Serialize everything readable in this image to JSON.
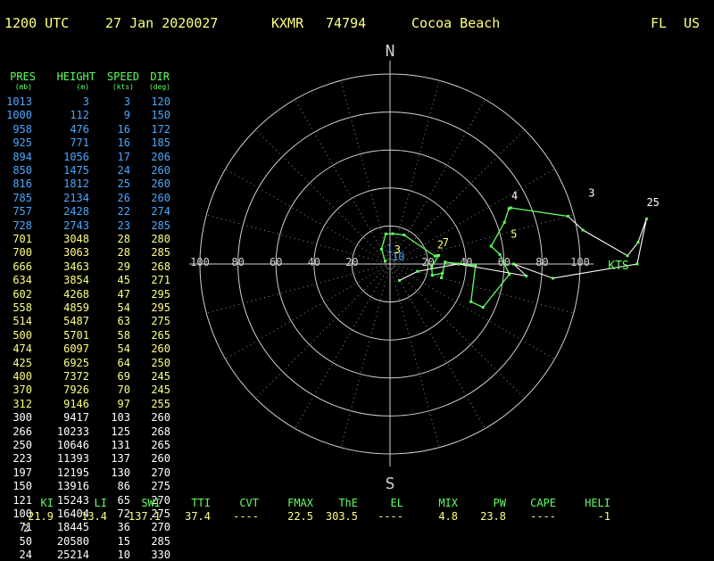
{
  "header": {
    "time": "1200 UTC",
    "date": "27 Jan 2020027",
    "station_id": "KXMR",
    "station_num": "74794",
    "place": "Cocoa Beach",
    "state": "FL",
    "country": "US"
  },
  "table": {
    "columns": [
      {
        "name": "PRES",
        "unit": "(mb)"
      },
      {
        "name": "HEIGHT",
        "unit": "(m)"
      },
      {
        "name": "SPEED",
        "unit": "(kts)"
      },
      {
        "name": "DIR",
        "unit": "(deg)"
      }
    ],
    "rows": [
      {
        "pres": "1013",
        "height": "3",
        "speed": "3",
        "dir": "120",
        "color": "#4aa8ff"
      },
      {
        "pres": "1000",
        "height": "112",
        "speed": "9",
        "dir": "150",
        "color": "#4aa8ff"
      },
      {
        "pres": "958",
        "height": "476",
        "speed": "16",
        "dir": "172",
        "color": "#4aa8ff"
      },
      {
        "pres": "925",
        "height": "771",
        "speed": "16",
        "dir": "185",
        "color": "#4aa8ff"
      },
      {
        "pres": "894",
        "height": "1056",
        "speed": "17",
        "dir": "206",
        "color": "#4aa8ff"
      },
      {
        "pres": "850",
        "height": "1475",
        "speed": "24",
        "dir": "260",
        "color": "#4aa8ff"
      },
      {
        "pres": "816",
        "height": "1812",
        "speed": "25",
        "dir": "260",
        "color": "#4aa8ff"
      },
      {
        "pres": "785",
        "height": "2134",
        "speed": "26",
        "dir": "260",
        "color": "#4aa8ff"
      },
      {
        "pres": "757",
        "height": "2428",
        "speed": "22",
        "dir": "274",
        "color": "#4aa8ff"
      },
      {
        "pres": "728",
        "height": "2743",
        "speed": "23",
        "dir": "285",
        "color": "#4aa8ff"
      },
      {
        "pres": "701",
        "height": "3048",
        "speed": "28",
        "dir": "280",
        "color": "#ffff80"
      },
      {
        "pres": "700",
        "height": "3063",
        "speed": "28",
        "dir": "285",
        "color": "#ffff80"
      },
      {
        "pres": "666",
        "height": "3463",
        "speed": "29",
        "dir": "268",
        "color": "#ffff80"
      },
      {
        "pres": "634",
        "height": "3854",
        "speed": "45",
        "dir": "271",
        "color": "#ffff80"
      },
      {
        "pres": "602",
        "height": "4268",
        "speed": "47",
        "dir": "295",
        "color": "#ffff80"
      },
      {
        "pres": "558",
        "height": "4859",
        "speed": "54",
        "dir": "295",
        "color": "#ffff80"
      },
      {
        "pres": "514",
        "height": "5487",
        "speed": "63",
        "dir": "275",
        "color": "#ffff80"
      },
      {
        "pres": "500",
        "height": "5701",
        "speed": "58",
        "dir": "265",
        "color": "#ffff80"
      },
      {
        "pres": "474",
        "height": "6097",
        "speed": "54",
        "dir": "260",
        "color": "#ffff80"
      },
      {
        "pres": "425",
        "height": "6925",
        "speed": "64",
        "dir": "250",
        "color": "#ffff80"
      },
      {
        "pres": "400",
        "height": "7372",
        "speed": "69",
        "dir": "245",
        "color": "#ffff80"
      },
      {
        "pres": "370",
        "height": "7926",
        "speed": "70",
        "dir": "245",
        "color": "#ffff80"
      },
      {
        "pres": "312",
        "height": "9146",
        "speed": "97",
        "dir": "255",
        "color": "#ffff80"
      },
      {
        "pres": "300",
        "height": "9417",
        "speed": "103",
        "dir": "260",
        "color": "#ffffff"
      },
      {
        "pres": "266",
        "height": "10233",
        "speed": "125",
        "dir": "268",
        "color": "#ffffff"
      },
      {
        "pres": "250",
        "height": "10646",
        "speed": "131",
        "dir": "265",
        "color": "#ffffff"
      },
      {
        "pres": "223",
        "height": "11393",
        "speed": "137",
        "dir": "260",
        "color": "#ffffff"
      },
      {
        "pres": "197",
        "height": "12195",
        "speed": "130",
        "dir": "270",
        "color": "#ffffff"
      },
      {
        "pres": "150",
        "height": "13916",
        "speed": "86",
        "dir": "275",
        "color": "#ffffff"
      },
      {
        "pres": "121",
        "height": "15243",
        "speed": "65",
        "dir": "270",
        "color": "#ffffff"
      },
      {
        "pres": "100",
        "height": "16404",
        "speed": "72",
        "dir": "275",
        "color": "#ffffff"
      },
      {
        "pres": "71",
        "height": "18445",
        "speed": "36",
        "dir": "270",
        "color": "#ffffff"
      },
      {
        "pres": "50",
        "height": "20580",
        "speed": "15",
        "dir": "285",
        "color": "#ffffff"
      },
      {
        "pres": "24",
        "height": "25214",
        "speed": "10",
        "dir": "330",
        "color": "#ffffff"
      }
    ]
  },
  "indices": [
    {
      "label": "KI",
      "value": "21.9"
    },
    {
      "label": "LI",
      "value": "13.4"
    },
    {
      "label": "SWI",
      "value": "137.1"
    },
    {
      "label": "TTI",
      "value": "37.4"
    },
    {
      "label": "CVT",
      "value": "----"
    },
    {
      "label": "FMAX",
      "value": "22.5"
    },
    {
      "label": "ThE",
      "value": "303.5"
    },
    {
      "label": "EL",
      "value": "----"
    },
    {
      "label": "MIX",
      "value": "4.8"
    },
    {
      "label": "PW",
      "value": "23.8"
    },
    {
      "label": "CAPE",
      "value": "----"
    },
    {
      "label": "HELI",
      "value": "-1"
    }
  ],
  "extra_digit": "2",
  "chart_data": {
    "type": "scatter",
    "subtype": "hodograph",
    "compass": {
      "north": "N",
      "south": "S"
    },
    "radial_unit": "KTS",
    "ring_spacing_kts": 20,
    "max_ring_kts": 100,
    "ring_labels": [
      "100",
      "80",
      "60",
      "40",
      "20",
      "20",
      "40",
      "60",
      "80",
      "100"
    ],
    "height_labels": [
      {
        "text": "10",
        "dir": 260,
        "speed": 3
      },
      {
        "text": "1",
        "dir": 160,
        "speed": 5
      },
      {
        "text": "3",
        "dir": 210,
        "speed": 5
      },
      {
        "text": "2",
        "dir": 255,
        "speed": 26
      },
      {
        "text": "7",
        "dir": 254,
        "speed": 29
      },
      {
        "text": "5",
        "dir": 259,
        "speed": 65
      },
      {
        "text": "4",
        "dir": 243,
        "speed": 72
      },
      {
        "text": "3",
        "dir": 252,
        "speed": 110
      },
      {
        "text": "25",
        "dir": 258,
        "speed": 140
      }
    ],
    "wind_from_dir_deg": [
      120,
      150,
      172,
      185,
      206,
      260,
      260,
      260,
      274,
      285,
      280,
      285,
      268,
      271,
      295,
      295,
      275,
      265,
      260,
      250,
      245,
      245,
      255,
      260,
      268,
      265,
      260,
      270,
      275,
      270,
      275,
      270,
      285,
      330
    ],
    "speed_kts": [
      3,
      9,
      16,
      16,
      17,
      24,
      25,
      26,
      22,
      23,
      28,
      28,
      29,
      45,
      47,
      54,
      63,
      58,
      54,
      64,
      69,
      70,
      97,
      103,
      125,
      131,
      137,
      130,
      86,
      65,
      72,
      36,
      15,
      10
    ],
    "line_color": "#60ff60",
    "point_color": "#60ff60",
    "upper_line_color": "#ffffff"
  }
}
